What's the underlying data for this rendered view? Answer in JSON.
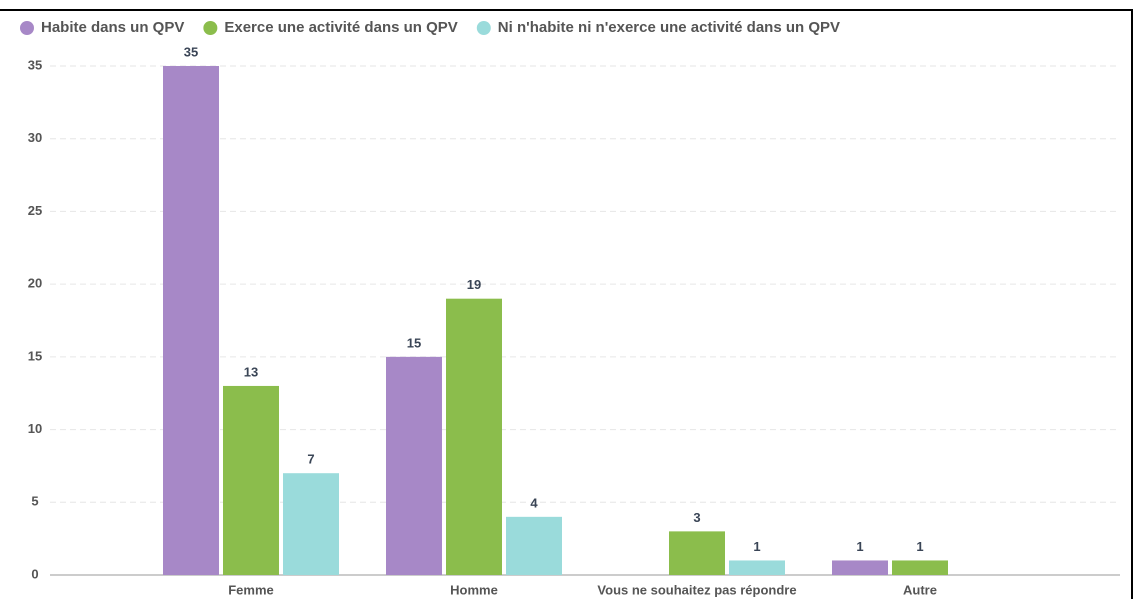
{
  "chart_data": {
    "type": "bar",
    "categories": [
      "Femme",
      "Homme",
      "Vous ne souhaitez pas répondre",
      "Autre"
    ],
    "series": [
      {
        "name": "Habite dans un QPV",
        "color": "#a788c7",
        "values": [
          35,
          15,
          null,
          1
        ]
      },
      {
        "name": "Exerce une activité dans un QPV",
        "color": "#8bbd4c",
        "values": [
          13,
          19,
          3,
          1
        ]
      },
      {
        "name": "Ni n'habite ni n'exerce une activité dans un QPV",
        "color": "#9adbdb",
        "values": [
          7,
          4,
          1,
          null
        ]
      }
    ],
    "ylim": [
      0,
      35
    ],
    "yticks": [
      0,
      5,
      10,
      15,
      20,
      25,
      30,
      35
    ],
    "grid": true,
    "legend": "top"
  }
}
